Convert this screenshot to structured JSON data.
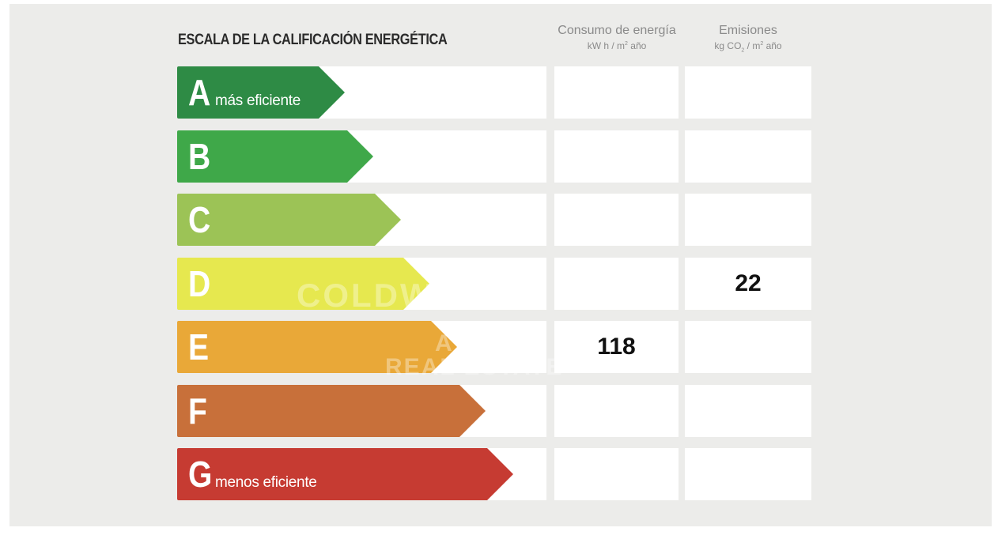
{
  "title": "ESCALA DE LA CALIFICACIÓN ENERGÉTICA",
  "columns": {
    "energy": {
      "label": "Consumo de energía",
      "unit_pre": "kW h / m",
      "unit_sup": "2",
      "unit_post": " año"
    },
    "emissions": {
      "label": "Emisiones",
      "unit_pre": "kg CO",
      "unit_sub": "2",
      "unit_mid": " / m",
      "unit_sup": "2",
      "unit_post": " año"
    }
  },
  "ratings": [
    {
      "letter": "A",
      "label": "más eficiente",
      "color": "#2e8b45",
      "energy": "",
      "emissions": ""
    },
    {
      "letter": "B",
      "label": "",
      "color": "#3fa849",
      "energy": "",
      "emissions": ""
    },
    {
      "letter": "C",
      "label": "",
      "color": "#9cc356",
      "energy": "",
      "emissions": ""
    },
    {
      "letter": "D",
      "label": "",
      "color": "#e6e84f",
      "energy": "",
      "emissions": "22"
    },
    {
      "letter": "E",
      "label": "",
      "color": "#e9a838",
      "energy": "118",
      "emissions": ""
    },
    {
      "letter": "F",
      "label": "",
      "color": "#c8703a",
      "energy": "",
      "emissions": ""
    },
    {
      "letter": "G",
      "label": "menos eficiente",
      "color": "#c63b32",
      "energy": "",
      "emissions": ""
    }
  ],
  "watermark": {
    "line1": "COLDWELL",
    "line2": "A",
    "line3": "REAL ESTATE"
  }
}
